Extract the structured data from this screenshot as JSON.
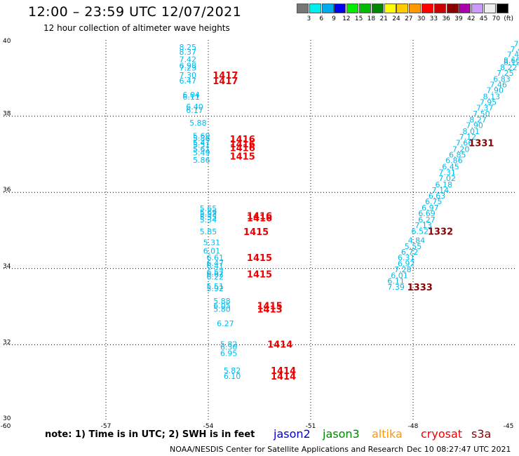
{
  "header": {
    "title": "12:00 – 23:59 UTC 12/07/2021",
    "subtitle": "12 hour collection of altimeter wave heights"
  },
  "color_scale": {
    "labels": [
      "3",
      "6",
      "9",
      "12",
      "15",
      "18",
      "21",
      "24",
      "27",
      "30",
      "33",
      "36",
      "39",
      "42",
      "45",
      "70",
      "(ft)"
    ],
    "colors": [
      "#777777",
      "#00eeee",
      "#00aaee",
      "#0000ee",
      "#00ee00",
      "#00bb00",
      "#008800",
      "#ffff00",
      "#ffcc00",
      "#ff9900",
      "#ff0000",
      "#cc0000",
      "#880000",
      "#aa00aa",
      "#cc99ff",
      "#eeeeee",
      "#000000"
    ]
  },
  "footer": {
    "note": "note:  1) Time is in UTC;  2) SWH is in feet",
    "satellites": [
      {
        "name": "jason2",
        "color": "#0000cc"
      },
      {
        "name": "jason3",
        "color": "#008800"
      },
      {
        "name": "altika",
        "color": "#ff9900"
      },
      {
        "name": "cryosat",
        "color": "#ee0000"
      },
      {
        "name": "s3a",
        "color": "#880000"
      }
    ],
    "credit": "NOAA/NESDIS Center for Satellite Applications and Research",
    "timestamp": "Dec 10 08:27:47 UTC 2021"
  },
  "chart_data": {
    "type": "scatter",
    "xlim": [
      -60,
      -45
    ],
    "ylim": [
      30,
      40
    ],
    "x_ticks": [
      "-60",
      "-57",
      "-54",
      "-51",
      "-48",
      "-45"
    ],
    "y_ticks": [
      "30",
      "32",
      "34",
      "36",
      "38",
      "40"
    ],
    "grid": true,
    "swh_color": "#00bbee",
    "swh_points": [
      {
        "x": -54.6,
        "y": 39.82,
        "v": "8.25"
      },
      {
        "x": -54.6,
        "y": 39.69,
        "v": "8.37"
      },
      {
        "x": -54.6,
        "y": 39.49,
        "v": "7.42"
      },
      {
        "x": -54.6,
        "y": 39.33,
        "v": "6.98"
      },
      {
        "x": -54.6,
        "y": 39.27,
        "v": "7.23"
      },
      {
        "x": -54.6,
        "y": 39.08,
        "v": "7.30"
      },
      {
        "x": -54.6,
        "y": 38.93,
        "v": "6.47"
      },
      {
        "x": -54.5,
        "y": 38.56,
        "v": "6.04"
      },
      {
        "x": -54.5,
        "y": 38.51,
        "v": "6.11"
      },
      {
        "x": -54.4,
        "y": 38.25,
        "v": "6.40"
      },
      {
        "x": -54.4,
        "y": 38.16,
        "v": "6.17"
      },
      {
        "x": -54.3,
        "y": 37.83,
        "v": "5.88"
      },
      {
        "x": -54.2,
        "y": 37.49,
        "v": "5.69"
      },
      {
        "x": -54.2,
        "y": 37.42,
        "v": "5.86"
      },
      {
        "x": -54.2,
        "y": 37.31,
        "v": "5.47"
      },
      {
        "x": -54.2,
        "y": 37.25,
        "v": "5.51"
      },
      {
        "x": -54.2,
        "y": 37.14,
        "v": "5.61"
      },
      {
        "x": -54.2,
        "y": 37.04,
        "v": "5.49"
      },
      {
        "x": -54.2,
        "y": 36.85,
        "v": "5.86"
      },
      {
        "x": -54.0,
        "y": 35.58,
        "v": "5.65"
      },
      {
        "x": -54.0,
        "y": 35.48,
        "v": "5.69"
      },
      {
        "x": -54.0,
        "y": 35.43,
        "v": "5.53"
      },
      {
        "x": -54.0,
        "y": 35.36,
        "v": "5.55"
      },
      {
        "x": -54.0,
        "y": 35.29,
        "v": "5.34"
      },
      {
        "x": -54.0,
        "y": 34.97,
        "v": "5.85"
      },
      {
        "x": -53.9,
        "y": 34.69,
        "v": "5.31"
      },
      {
        "x": -53.9,
        "y": 34.47,
        "v": "6.01"
      },
      {
        "x": -53.8,
        "y": 34.29,
        "v": "6.61"
      },
      {
        "x": -53.8,
        "y": 34.14,
        "v": "6.47"
      },
      {
        "x": -53.8,
        "y": 34.07,
        "v": "6.41"
      },
      {
        "x": -53.8,
        "y": 33.9,
        "v": "6.57"
      },
      {
        "x": -53.8,
        "y": 33.86,
        "v": "6.62"
      },
      {
        "x": -53.8,
        "y": 33.78,
        "v": "6.22"
      },
      {
        "x": -53.8,
        "y": 33.54,
        "v": "5.51"
      },
      {
        "x": -53.8,
        "y": 33.48,
        "v": "5.92"
      },
      {
        "x": -53.6,
        "y": 33.15,
        "v": "5.88"
      },
      {
        "x": -53.6,
        "y": 33.03,
        "v": "6.05"
      },
      {
        "x": -53.6,
        "y": 32.94,
        "v": "5.80"
      },
      {
        "x": -53.5,
        "y": 32.56,
        "v": "6.27"
      },
      {
        "x": -53.4,
        "y": 32.02,
        "v": "5.82"
      },
      {
        "x": -53.4,
        "y": 31.94,
        "v": "6.30"
      },
      {
        "x": -53.4,
        "y": 31.78,
        "v": "6.95"
      },
      {
        "x": -53.3,
        "y": 31.33,
        "v": "5.82"
      },
      {
        "x": -53.3,
        "y": 31.18,
        "v": "6.10"
      },
      {
        "x": -44.8,
        "y": 39.9,
        "v": "7.63"
      },
      {
        "x": -44.9,
        "y": 39.76,
        "v": "7.47"
      },
      {
        "x": -45.0,
        "y": 39.62,
        "v": "7.43"
      },
      {
        "x": -45.1,
        "y": 39.47,
        "v": "8.60"
      },
      {
        "x": -45.1,
        "y": 39.42,
        "v": "8.12"
      },
      {
        "x": -45.2,
        "y": 39.28,
        "v": "8.22"
      },
      {
        "x": -45.3,
        "y": 39.13,
        "v": "7.25"
      },
      {
        "x": -45.4,
        "y": 38.98,
        "v": "6.83"
      },
      {
        "x": -45.5,
        "y": 38.83,
        "v": "7.46"
      },
      {
        "x": -45.6,
        "y": 38.68,
        "v": "7.90"
      },
      {
        "x": -45.7,
        "y": 38.52,
        "v": "8.13"
      },
      {
        "x": -45.8,
        "y": 38.37,
        "v": "7.95"
      },
      {
        "x": -45.9,
        "y": 38.22,
        "v": "7.37"
      },
      {
        "x": -46.0,
        "y": 38.07,
        "v": "7.50"
      },
      {
        "x": -46.1,
        "y": 37.91,
        "v": "8.27"
      },
      {
        "x": -46.2,
        "y": 37.76,
        "v": "7.90"
      },
      {
        "x": -46.3,
        "y": 37.61,
        "v": "8.01"
      },
      {
        "x": -46.4,
        "y": 37.46,
        "v": "7.12"
      },
      {
        "x": -46.5,
        "y": 37.3,
        "v": "7.66"
      },
      {
        "x": -46.6,
        "y": 37.14,
        "v": "7.20"
      },
      {
        "x": -46.7,
        "y": 36.99,
        "v": "6.85"
      },
      {
        "x": -46.8,
        "y": 36.84,
        "v": "6.86"
      },
      {
        "x": -46.9,
        "y": 36.68,
        "v": "6.45"
      },
      {
        "x": -47.0,
        "y": 36.53,
        "v": "7.31"
      },
      {
        "x": -47.0,
        "y": 36.37,
        "v": "7.02"
      },
      {
        "x": -47.1,
        "y": 36.21,
        "v": "6.18"
      },
      {
        "x": -47.2,
        "y": 36.06,
        "v": "7.14"
      },
      {
        "x": -47.3,
        "y": 35.91,
        "v": "6.63"
      },
      {
        "x": -47.4,
        "y": 35.76,
        "v": "6.75"
      },
      {
        "x": -47.5,
        "y": 35.6,
        "v": "6.97"
      },
      {
        "x": -47.6,
        "y": 35.45,
        "v": "6.69"
      },
      {
        "x": -47.6,
        "y": 35.29,
        "v": "6.27"
      },
      {
        "x": -47.7,
        "y": 35.14,
        "v": "7.13"
      },
      {
        "x": -47.8,
        "y": 34.98,
        "v": "6.52"
      },
      {
        "x": -47.9,
        "y": 34.74,
        "v": "4.84"
      },
      {
        "x": -48.0,
        "y": 34.59,
        "v": "5.55"
      },
      {
        "x": -48.1,
        "y": 34.44,
        "v": "6.72"
      },
      {
        "x": -48.2,
        "y": 34.29,
        "v": "6.31"
      },
      {
        "x": -48.2,
        "y": 34.13,
        "v": "6.92"
      },
      {
        "x": -48.3,
        "y": 33.98,
        "v": "7.28"
      },
      {
        "x": -48.4,
        "y": 33.82,
        "v": "6.01"
      },
      {
        "x": -48.5,
        "y": 33.67,
        "v": "6.11"
      },
      {
        "x": -48.5,
        "y": 33.52,
        "v": "7.39"
      }
    ],
    "time_labels": [
      {
        "x": -53.5,
        "y": 39.08,
        "v": "1417",
        "color": "#ee0000"
      },
      {
        "x": -53.5,
        "y": 38.93,
        "v": "1417",
        "color": "#ee0000"
      },
      {
        "x": -53.0,
        "y": 37.4,
        "v": "1416",
        "color": "#ee0000"
      },
      {
        "x": -53.0,
        "y": 37.27,
        "v": "1416",
        "color": "#ee0000"
      },
      {
        "x": -53.0,
        "y": 37.17,
        "v": "1416",
        "color": "#ee0000"
      },
      {
        "x": -53.0,
        "y": 36.95,
        "v": "1415",
        "color": "#ee0000"
      },
      {
        "x": -52.5,
        "y": 35.39,
        "v": "1416",
        "color": "#ee0000"
      },
      {
        "x": -52.5,
        "y": 35.33,
        "v": "1416",
        "color": "#ee0000"
      },
      {
        "x": -52.6,
        "y": 34.97,
        "v": "1415",
        "color": "#ee0000"
      },
      {
        "x": -52.5,
        "y": 34.29,
        "v": "1415",
        "color": "#ee0000"
      },
      {
        "x": -52.5,
        "y": 33.86,
        "v": "1415",
        "color": "#ee0000"
      },
      {
        "x": -52.2,
        "y": 33.03,
        "v": "1415",
        "color": "#ee0000"
      },
      {
        "x": -52.2,
        "y": 32.94,
        "v": "1413",
        "color": "#ee0000"
      },
      {
        "x": -51.9,
        "y": 32.02,
        "v": "1414",
        "color": "#ee0000"
      },
      {
        "x": -51.8,
        "y": 31.33,
        "v": "1414",
        "color": "#ee0000"
      },
      {
        "x": -51.8,
        "y": 31.18,
        "v": "1414",
        "color": "#ee0000"
      },
      {
        "x": -46.0,
        "y": 37.3,
        "v": "1331",
        "color": "#880000"
      },
      {
        "x": -47.2,
        "y": 34.98,
        "v": "1332",
        "color": "#880000"
      },
      {
        "x": -47.8,
        "y": 33.52,
        "v": "1333",
        "color": "#880000"
      }
    ]
  }
}
